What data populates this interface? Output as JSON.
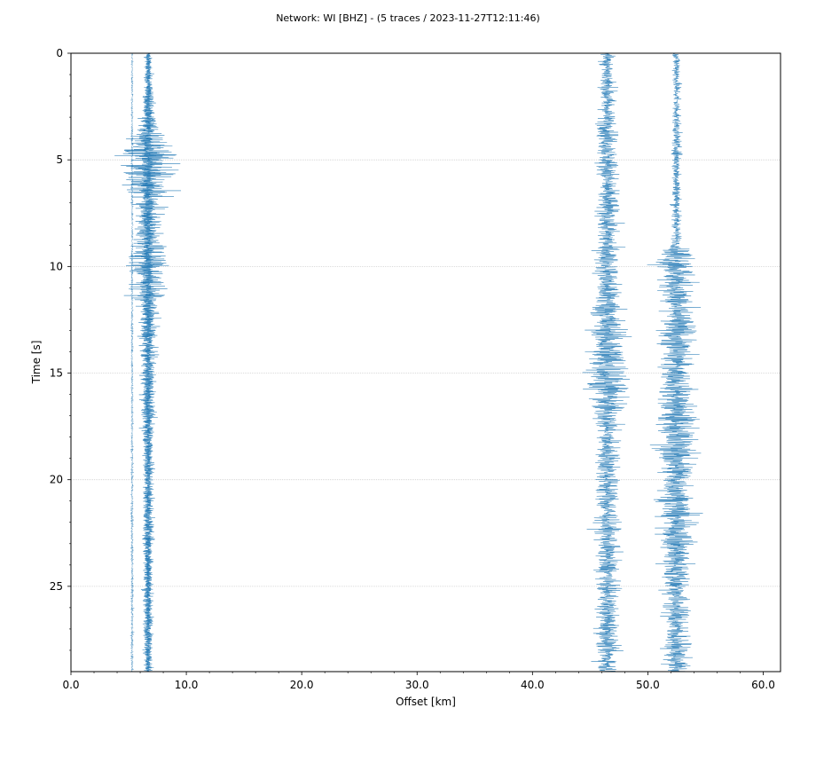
{
  "chart_data": {
    "type": "line",
    "title": "Network: WI [BHZ] - (5 traces / 2023-11-27T12:11:46)",
    "xlabel": "Offset [km]",
    "ylabel": "Time [s]",
    "xlim": [
      0,
      61.5
    ],
    "ylim": [
      29,
      0
    ],
    "y_inverted": true,
    "x_ticks": [
      0,
      10,
      20,
      30,
      40,
      50,
      60
    ],
    "x_tick_labels": [
      "0.0",
      "10.0",
      "20.0",
      "30.0",
      "40.0",
      "50.0",
      "60.0"
    ],
    "y_ticks": [
      0,
      5,
      10,
      15,
      20,
      25
    ],
    "y_tick_labels": [
      "0",
      "5",
      "10",
      "15",
      "20",
      "25"
    ],
    "grid": "horizontal",
    "series": [
      {
        "offset_km": 5.3,
        "color": "#1f77b4",
        "envelope": [
          [
            0,
            0.2
          ],
          [
            29,
            0.3
          ]
        ]
      },
      {
        "offset_km": 6.7,
        "color": "#1f77b4",
        "envelope": [
          [
            0,
            0.6
          ],
          [
            2,
            0.9
          ],
          [
            3.5,
            2.5
          ],
          [
            4.7,
            6.5
          ],
          [
            6,
            5.5
          ],
          [
            8,
            2.5
          ],
          [
            10,
            4.5
          ],
          [
            12,
            2.0
          ],
          [
            18,
            1.2
          ],
          [
            29,
            0.9
          ]
        ]
      },
      {
        "offset_km": 6.7,
        "color": "#1f77b4",
        "envelope": [
          [
            0,
            0.8
          ],
          [
            4,
            1.2
          ],
          [
            10,
            1.3
          ],
          [
            20,
            1.0
          ],
          [
            29,
            0.8
          ]
        ]
      },
      {
        "offset_km": 46.5,
        "color": "#1f77b4",
        "envelope": [
          [
            0,
            1.5
          ],
          [
            5,
            2.2
          ],
          [
            10,
            2.5
          ],
          [
            15.5,
            5.0
          ],
          [
            17.5,
            2.5
          ],
          [
            29,
            2.2
          ]
        ]
      },
      {
        "offset_km": 52.5,
        "color": "#1f77b4",
        "envelope": [
          [
            0,
            0.9
          ],
          [
            9,
            1.0
          ],
          [
            9.6,
            5.0
          ],
          [
            11,
            3.5
          ],
          [
            13.5,
            3.8
          ],
          [
            15,
            3.0
          ],
          [
            18.5,
            4.5
          ],
          [
            20.5,
            3.5
          ],
          [
            23,
            3.5
          ],
          [
            25.5,
            3.0
          ],
          [
            29,
            2.5
          ]
        ]
      }
    ],
    "line_color": "#1f77b4"
  }
}
